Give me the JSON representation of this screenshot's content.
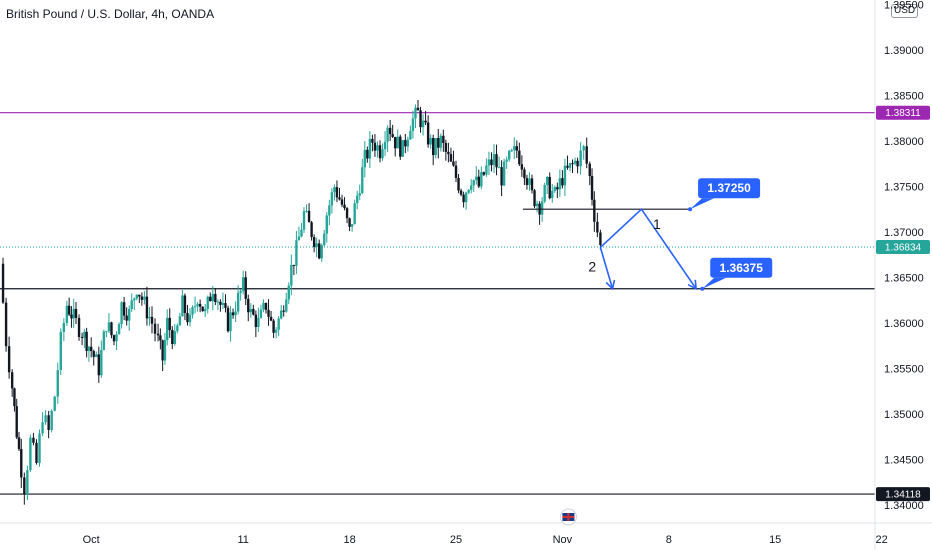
{
  "chart_data": {
    "type": "candlestick",
    "title": "British Pound / U.S. Dollar, 4h, OANDA",
    "currency": "USD",
    "timeframe": "4h",
    "y_axis": {
      "range": [
        1.338,
        1.3955
      ],
      "ticks": [
        "1.34000",
        "1.34500",
        "1.35000",
        "1.35500",
        "1.36000",
        "1.36500",
        "1.37000",
        "1.37500",
        "1.38000",
        "1.38500",
        "1.39000",
        "1.39500"
      ]
    },
    "x_axis": {
      "range_day": [
        -6,
        28
      ],
      "ticks": [
        {
          "label": "Oct",
          "day": 0
        },
        {
          "label": "11",
          "day": 10
        },
        {
          "label": "18",
          "day": 17
        },
        {
          "label": "25",
          "day": 24
        },
        {
          "label": "Nov",
          "day": 31
        },
        {
          "label": "8",
          "day": 38
        },
        {
          "label": "15",
          "day": 45
        },
        {
          "label": "22",
          "day": 52
        }
      ]
    },
    "price_path": [
      [
        -6,
        1.3665
      ],
      [
        -5.6,
        1.358
      ],
      [
        -5.2,
        1.353
      ],
      [
        -4.9,
        1.348
      ],
      [
        -4.6,
        1.344
      ],
      [
        -4.4,
        1.342
      ],
      [
        -4.0,
        1.347
      ],
      [
        -3.6,
        1.3445
      ],
      [
        -3.2,
        1.35
      ],
      [
        -2.8,
        1.348
      ],
      [
        -2.4,
        1.352
      ],
      [
        -2.0,
        1.358
      ],
      [
        -1.6,
        1.362
      ],
      [
        -1.0,
        1.36
      ],
      [
        -0.6,
        1.359
      ],
      [
        0.0,
        1.357
      ],
      [
        0.5,
        1.355
      ],
      [
        1.0,
        1.36
      ],
      [
        1.5,
        1.358
      ],
      [
        2.0,
        1.362
      ],
      [
        2.5,
        1.361
      ],
      [
        3.0,
        1.364
      ],
      [
        3.5,
        1.362
      ],
      [
        4.0,
        1.36
      ],
      [
        4.4,
        1.358
      ],
      [
        4.7,
        1.356
      ],
      [
        5.0,
        1.36
      ],
      [
        5.5,
        1.358
      ],
      [
        6.0,
        1.362
      ],
      [
        6.5,
        1.36
      ],
      [
        7.0,
        1.363
      ],
      [
        7.5,
        1.361
      ],
      [
        8.0,
        1.364
      ],
      [
        8.5,
        1.362
      ],
      [
        9.0,
        1.36
      ],
      [
        9.5,
        1.362
      ],
      [
        10.0,
        1.364
      ],
      [
        10.5,
        1.361
      ],
      [
        11.0,
        1.36
      ],
      [
        11.5,
        1.362
      ],
      [
        12.0,
        1.359
      ],
      [
        12.5,
        1.361
      ],
      [
        13.0,
        1.365
      ],
      [
        13.5,
        1.368
      ],
      [
        14.0,
        1.372
      ],
      [
        14.5,
        1.37
      ],
      [
        15.0,
        1.368
      ],
      [
        15.5,
        1.372
      ],
      [
        16.0,
        1.375
      ],
      [
        16.5,
        1.373
      ],
      [
        17.0,
        1.37
      ],
      [
        17.5,
        1.374
      ],
      [
        18.0,
        1.378
      ],
      [
        18.5,
        1.38
      ],
      [
        19.0,
        1.379
      ],
      [
        19.5,
        1.382
      ],
      [
        20.0,
        1.38
      ],
      [
        20.5,
        1.379
      ],
      [
        21.0,
        1.382
      ],
      [
        21.5,
        1.383
      ],
      [
        22.0,
        1.381
      ],
      [
        22.5,
        1.379
      ],
      [
        23.0,
        1.38
      ],
      [
        23.5,
        1.378
      ],
      [
        24.0,
        1.376
      ],
      [
        24.5,
        1.374
      ],
      [
        25.0,
        1.376
      ],
      [
        25.5,
        1.375
      ],
      [
        26.0,
        1.377
      ],
      [
        26.5,
        1.378
      ],
      [
        27.0,
        1.376
      ],
      [
        27.5,
        1.378
      ],
      [
        28.0,
        1.379
      ],
      [
        28.5,
        1.377
      ],
      [
        29.0,
        1.374
      ],
      [
        29.5,
        1.373
      ],
      [
        30.0,
        1.375
      ],
      [
        30.5,
        1.374
      ],
      [
        31.0,
        1.376
      ],
      [
        31.5,
        1.377
      ],
      [
        32.0,
        1.378
      ],
      [
        32.4,
        1.379
      ],
      [
        32.8,
        1.376
      ],
      [
        33.1,
        1.372
      ],
      [
        33.5,
        1.3683
      ]
    ],
    "horizontal_levels": [
      {
        "price": 1.38311,
        "label": "1.38311",
        "color": "#9c27b0"
      },
      {
        "price": 1.34118,
        "label": "1.34118",
        "color": "#131722"
      },
      {
        "price": 1.36375,
        "color": "#131722"
      }
    ],
    "current_price": {
      "price": 1.36834,
      "label": "1.36834",
      "color": "#26a69a"
    },
    "segment_level": {
      "price": 1.3725
    },
    "callouts": [
      {
        "text": "1.37250",
        "price": 1.3725
      },
      {
        "text": "1.36375",
        "price": 1.36375
      }
    ],
    "projection_path": [
      [
        33.5,
        1.3683
      ],
      [
        36.2,
        1.3725
      ],
      [
        39.8,
        1.36375
      ]
    ],
    "projection_short": [
      [
        33.5,
        1.3683
      ],
      [
        34.3,
        1.36375
      ]
    ],
    "wave_labels": [
      "1",
      "2"
    ],
    "colors": {
      "up": "#26a69a",
      "down": "#131722",
      "projection": "#2962ff",
      "callout": "#2962ff"
    }
  }
}
